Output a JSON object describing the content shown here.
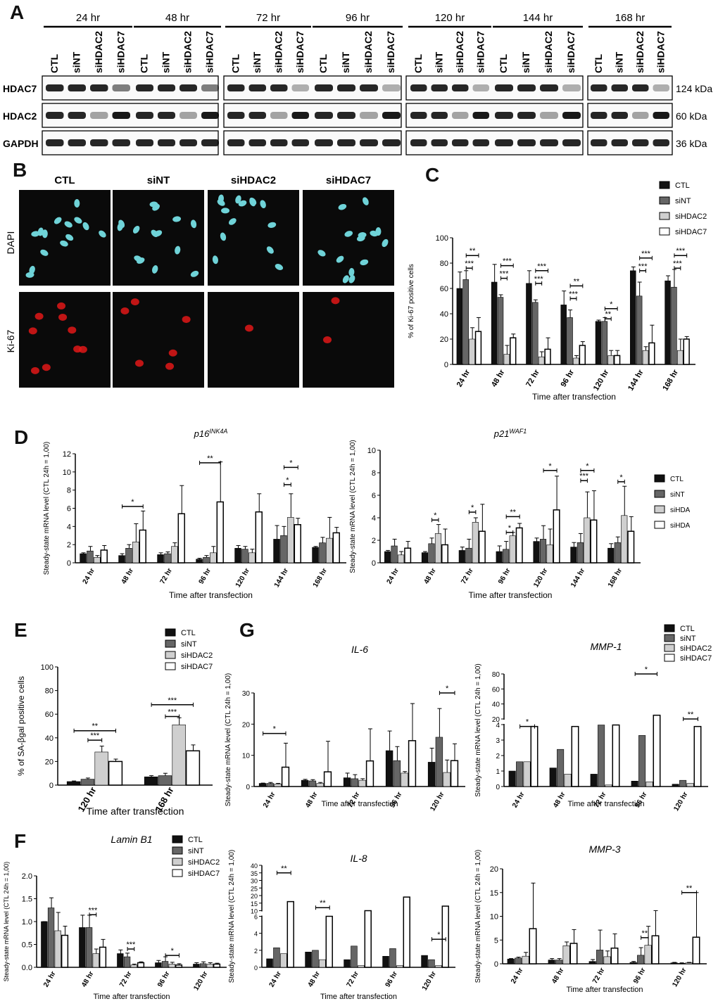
{
  "panel_letters": [
    "A",
    "B",
    "C",
    "D",
    "E",
    "F",
    "G"
  ],
  "blot": {
    "time_groups": [
      "24 hr",
      "48 hr",
      "72 hr",
      "96 hr",
      "120 hr",
      "144 hr",
      "168 hr"
    ],
    "lanes": [
      "CTL",
      "siNT",
      "siHDAC2",
      "siHDAC7"
    ],
    "rows": [
      {
        "name": "HDAC7",
        "kda": "124 kDa"
      },
      {
        "name": "HDAC2",
        "kda": "60 kDa"
      },
      {
        "name": "GAPDH",
        "kda": "36 kDa"
      }
    ]
  },
  "micro": {
    "columns": [
      "CTL",
      "siNT",
      "siHDAC2",
      "siHDAC7"
    ],
    "rows": [
      "DAPI",
      "Ki-67"
    ]
  },
  "legend": [
    "CTL",
    "siNT",
    "siHDAC2",
    "siHDAC7"
  ],
  "colors": {
    "CTL": "#111111",
    "siNT": "#666666",
    "siHDAC2": "#cfcfcf",
    "siHDAC7": "#ffffff"
  },
  "chart_data": [
    {
      "id": "C",
      "type": "bar",
      "title": "",
      "ylabel": "% of Ki-67 positive cells",
      "xlabel": "Time after transfection",
      "ylim": [
        0,
        100
      ],
      "yticks": [
        0,
        20,
        40,
        60,
        80,
        100
      ],
      "categories": [
        "24 hr",
        "48 hr",
        "72 hr",
        "96 hr",
        "120 hr",
        "144 hr",
        "168 hr"
      ],
      "series": [
        {
          "name": "CTL",
          "values": [
            60,
            65,
            64,
            47,
            34,
            74,
            66
          ]
        },
        {
          "name": "siNT",
          "values": [
            67,
            53,
            49,
            37,
            34,
            54,
            61
          ]
        },
        {
          "name": "siHDAC2",
          "values": [
            20,
            8,
            6,
            5,
            7,
            11,
            11
          ]
        },
        {
          "name": "siHDAC7",
          "values": [
            26,
            21,
            12,
            15,
            7,
            17,
            20
          ]
        }
      ],
      "errors": [
        [
          13,
          14,
          10,
          11,
          1,
          3,
          4
        ],
        [
          7,
          2,
          2,
          6,
          3,
          11,
          14
        ],
        [
          9,
          7,
          4,
          2,
          4,
          3,
          9
        ],
        [
          11,
          3,
          9,
          3,
          4,
          14,
          2
        ]
      ],
      "sig": [
        "**",
        "***",
        "***",
        "***",
        "***",
        "***",
        "**",
        "***",
        "*",
        "**",
        "***",
        "***",
        "***",
        "***"
      ]
    },
    {
      "id": "D1",
      "type": "bar",
      "title": "p16INK4A",
      "ylabel": "Steady-state mRNA level (CTL 24h = 1,00)",
      "xlabel": "Time after transfection",
      "ylim": [
        0,
        12
      ],
      "yticks": [
        0,
        2,
        4,
        6,
        8,
        10,
        12
      ],
      "categories": [
        "24 hr",
        "48 hr",
        "72 hr",
        "96 hr",
        "120 hr",
        "144 hr",
        "168 hr"
      ],
      "series": [
        {
          "name": "CTL",
          "values": [
            1.0,
            0.8,
            0.9,
            0.4,
            1.6,
            2.6,
            1.7
          ]
        },
        {
          "name": "siNT",
          "values": [
            1.3,
            1.6,
            1.0,
            0.6,
            1.5,
            3.0,
            2.2
          ]
        },
        {
          "name": "siHDAC2",
          "values": [
            0.6,
            2.3,
            1.8,
            1.1,
            1.1,
            5.0,
            2.7
          ]
        },
        {
          "name": "siHDAC7",
          "values": [
            1.4,
            3.6,
            5.4,
            6.7,
            5.6,
            4.2,
            3.3
          ]
        }
      ],
      "errors": [
        [
          0.1,
          0.2,
          0.2,
          0.1,
          0.3,
          1.5,
          0.1
        ],
        [
          0.5,
          0.4,
          0.2,
          0.2,
          0.3,
          1.0,
          0.6
        ],
        [
          0.2,
          2.0,
          0.4,
          0.7,
          0.4,
          2.6,
          2.3
        ],
        [
          0.5,
          2.1,
          3.1,
          4.4,
          2.0,
          0.7,
          0.6
        ]
      ],
      "sig": [
        "*",
        "**",
        "*",
        "*"
      ]
    },
    {
      "id": "D2",
      "type": "bar",
      "title": "p21WAF1",
      "ylabel": "Steady-state mRNA level (CTL 24h = 1,00)",
      "xlabel": "Time after transfection",
      "ylim": [
        0,
        10
      ],
      "yticks": [
        0,
        2,
        4,
        6,
        8,
        10
      ],
      "categories": [
        "24 hr",
        "48 hr",
        "72 hr",
        "96 hr",
        "120 hr",
        "144 hr",
        "168 hr"
      ],
      "series": [
        {
          "name": "CTL",
          "values": [
            1.0,
            0.9,
            1.1,
            1.0,
            1.9,
            1.4,
            1.3
          ]
        },
        {
          "name": "siNT",
          "values": [
            1.5,
            1.7,
            1.3,
            1.2,
            2.1,
            1.8,
            1.8
          ]
        },
        {
          "name": "siHDAC2",
          "values": [
            0.7,
            2.6,
            3.6,
            2.4,
            1.6,
            4.0,
            4.2
          ]
        },
        {
          "name": "siHDAC7",
          "values": [
            1.3,
            1.6,
            2.8,
            3.1,
            4.7,
            3.8,
            2.8
          ]
        }
      ],
      "errors": [
        [
          0.1,
          0.1,
          0.3,
          0.5,
          0.3,
          0.4,
          0.4
        ],
        [
          0.6,
          0.5,
          0.8,
          0.7,
          1.2,
          0.8,
          0.5
        ],
        [
          0.3,
          0.8,
          0.4,
          0.3,
          1.4,
          2.3,
          2.6
        ],
        [
          0.6,
          1.4,
          2.4,
          0.4,
          3.0,
          2.6,
          1.3
        ]
      ],
      "sig": [
        "*",
        "*",
        "*",
        "**",
        "*",
        "*",
        "***",
        "*"
      ]
    },
    {
      "id": "E",
      "type": "bar",
      "title": "",
      "ylabel": "% of SA-βgal positive cells",
      "xlabel": "Time after transfection",
      "ylim": [
        0,
        100
      ],
      "yticks": [
        0,
        20,
        40,
        60,
        80,
        100
      ],
      "categories": [
        "120 hr",
        "168 hr"
      ],
      "series": [
        {
          "name": "CTL",
          "values": [
            3,
            7
          ]
        },
        {
          "name": "siNT",
          "values": [
            5,
            8
          ]
        },
        {
          "name": "siHDAC2",
          "values": [
            28,
            51
          ]
        },
        {
          "name": "siHDAC7",
          "values": [
            20,
            29
          ]
        }
      ],
      "errors": [
        [
          0.5,
          1
        ],
        [
          1,
          2
        ],
        [
          5,
          6
        ],
        [
          2,
          5
        ]
      ],
      "sig": [
        "**",
        "***",
        "***",
        "***"
      ]
    },
    {
      "id": "F",
      "type": "bar",
      "title": "Lamin B1",
      "ylabel": "Steady-state mRNA level (CTL 24h = 1,00)",
      "xlabel": "Time after transfection",
      "ylim": [
        0,
        2.0
      ],
      "yticks": [
        "0.0",
        "0.5",
        "1.0",
        "1.5",
        "2.0"
      ],
      "categories": [
        "24 hr",
        "48 hr",
        "72 hr",
        "96 hr",
        "120 hr"
      ],
      "series": [
        {
          "name": "CTL",
          "values": [
            1.0,
            0.87,
            0.3,
            0.1,
            0.07
          ]
        },
        {
          "name": "siNT",
          "values": [
            1.3,
            0.87,
            0.23,
            0.13,
            0.08
          ]
        },
        {
          "name": "siHDAC2",
          "values": [
            0.8,
            0.3,
            0.05,
            0.07,
            0.07
          ]
        },
        {
          "name": "siHDAC7",
          "values": [
            0.7,
            0.44,
            0.1,
            0.05,
            0.07
          ]
        }
      ],
      "errors": [
        [
          0,
          0.27,
          0.08,
          0.05,
          0.03
        ],
        [
          0.22,
          0.27,
          0.08,
          0.1,
          0.04
        ],
        [
          0.4,
          0.1,
          0.02,
          0.04,
          0.03
        ],
        [
          0.2,
          0.17,
          0.02,
          0.03,
          0.02
        ]
      ],
      "sig": [
        "***",
        "***",
        "*"
      ]
    },
    {
      "id": "G1",
      "type": "bar",
      "title": "IL-6",
      "ylabel": "Steady-state mRNA level (CTL 24h = 1,00)",
      "xlabel": "Time after transfection",
      "ylim": [
        0,
        30
      ],
      "yticks": [
        0,
        10,
        20,
        30
      ],
      "categories": [
        "24 hr",
        "48 hr",
        "72 hr",
        "96 hr",
        "120 hr"
      ],
      "series": [
        {
          "name": "CTL",
          "values": [
            1.0,
            2.0,
            2.8,
            11.5,
            7.8
          ]
        },
        {
          "name": "siNT",
          "values": [
            1.0,
            1.8,
            2.5,
            8.3,
            15.8
          ]
        },
        {
          "name": "siHDAC2",
          "values": [
            0.8,
            1.0,
            2.0,
            4.3,
            4.5
          ]
        },
        {
          "name": "siHDAC7",
          "values": [
            6.2,
            4.7,
            8.2,
            14.7,
            8.3
          ]
        }
      ],
      "errors": [
        [
          0.1,
          0.3,
          1.5,
          6.3,
          4.5
        ],
        [
          0.3,
          0.4,
          1.3,
          4.5,
          9.2
        ],
        [
          0.2,
          0.3,
          0.5,
          0.5,
          4.0
        ],
        [
          7.7,
          9.8,
          10.3,
          11.9,
          5.4
        ]
      ],
      "sig": [
        "*",
        "*"
      ]
    },
    {
      "id": "G2",
      "type": "bar",
      "title": "MMP-1",
      "ylabel": "Steady-state mRNA level (CTL 24h = 1,00)",
      "xlabel": "Time after transfection",
      "broken": true,
      "yticks_low": [
        0,
        1,
        2,
        3,
        4
      ],
      "yticks_high": [
        20,
        40,
        60,
        80
      ],
      "categories": [
        "24 hr",
        "48 hr",
        "72 hr",
        "96 hr",
        "120 hr"
      ],
      "series": [
        {
          "name": "CTL",
          "values": [
            1.0,
            1.2,
            0.8,
            0.35,
            0.15
          ]
        },
        {
          "name": "siNT",
          "values": [
            1.6,
            2.4,
            12,
            3.3,
            0.4
          ]
        },
        {
          "name": "siHDAC2",
          "values": [
            1.6,
            0.8,
            0.1,
            0.3,
            0.2
          ]
        },
        {
          "name": "siHDAC7",
          "values": [
            10,
            10,
            12,
            25,
            10
          ]
        }
      ],
      "sig": [
        "*",
        "*",
        "**"
      ]
    },
    {
      "id": "F2",
      "type": "bar",
      "title": "IL-8",
      "ylabel": "Steady-state mRNA level (CTL 24h = 1,00)",
      "xlabel": "Time after transfection",
      "broken": true,
      "yticks_low": [
        0,
        2,
        4,
        6
      ],
      "yticks_high": [
        10,
        15,
        20,
        25,
        30,
        35,
        40
      ],
      "categories": [
        "24 hr",
        "48 hr",
        "72 hr",
        "96 hr",
        "120 hr"
      ],
      "series": [
        {
          "name": "CTL",
          "values": [
            1.0,
            1.8,
            0.9,
            1.3,
            1.4
          ]
        },
        {
          "name": "siNT",
          "values": [
            2.3,
            2.0,
            2.5,
            2.2,
            0.9
          ]
        },
        {
          "name": "siHDAC2",
          "values": [
            1.6,
            0.9,
            0.2,
            0.2,
            0.2
          ]
        },
        {
          "name": "siHDAC7",
          "values": [
            16,
            6,
            10,
            19,
            13
          ]
        }
      ],
      "sig": [
        "**",
        "**",
        "*"
      ]
    },
    {
      "id": "G3",
      "type": "bar",
      "title": "MMP-3",
      "ylabel": "Steady-state mRNA level (CTL 24h = 1,00)",
      "xlabel": "Time after transfection",
      "ylim": [
        0,
        20
      ],
      "yticks": [
        0,
        5,
        10,
        15,
        20
      ],
      "categories": [
        "24 hr",
        "48 hr",
        "72 hr",
        "96 hr",
        "120 hr"
      ],
      "series": [
        {
          "name": "CTL",
          "values": [
            1.0,
            0.8,
            0.5,
            0.3,
            0.2
          ]
        },
        {
          "name": "siNT",
          "values": [
            1.2,
            0.8,
            2.9,
            1.8,
            0.1
          ]
        },
        {
          "name": "siHDAC2",
          "values": [
            1.6,
            3.8,
            1.5,
            3.9,
            0.2
          ]
        },
        {
          "name": "siHDAC7",
          "values": [
            7.4,
            4.3,
            3.3,
            5.9,
            5.6
          ]
        }
      ],
      "errors": [
        [
          0.1,
          0.3,
          0.4,
          0.2,
          0.1
        ],
        [
          0.2,
          0.3,
          4.2,
          1.6,
          0.1
        ],
        [
          0.8,
          0.8,
          1.2,
          4.0,
          0.1
        ],
        [
          9.6,
          2.9,
          3.0,
          5.3,
          9.4
        ]
      ],
      "sig": [
        "**",
        "**"
      ]
    }
  ]
}
